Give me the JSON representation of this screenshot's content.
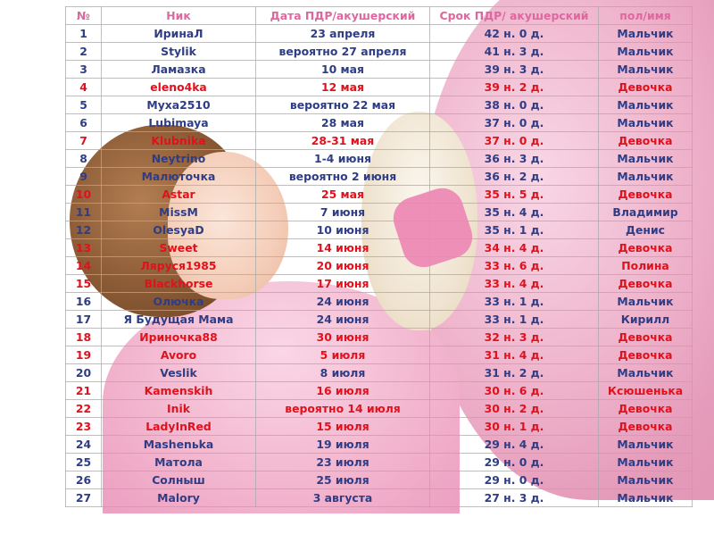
{
  "headers": [
    "№",
    "Ник",
    "Дата ПДР/акушерский",
    "Срок ПДР/ акушерский",
    "пол/имя"
  ],
  "rows": [
    {
      "num": "1",
      "nick": "ИринаЛ",
      "date": "23 апреля",
      "term": "42 н. 0 д.",
      "gender": "Мальчик",
      "girl": false
    },
    {
      "num": "2",
      "nick": "Stylik",
      "date": "вероятно 27 апреля",
      "term": "41 н. 3 д.",
      "gender": "Мальчик",
      "girl": false
    },
    {
      "num": "3",
      "nick": "Ламазка",
      "date": "10 мая",
      "term": "39 н. 3 д.",
      "gender": "Мальчик",
      "girl": false
    },
    {
      "num": "4",
      "nick": "eleno4ka",
      "date": "12 мая",
      "term": "39 н. 2 д.",
      "gender": "Девочка",
      "girl": true
    },
    {
      "num": "5",
      "nick": "Муха2510",
      "date": "вероятно 22 мая",
      "term": "38 н. 0 д.",
      "gender": "Мальчик",
      "girl": false
    },
    {
      "num": "6",
      "nick": "Lubimaya",
      "date": "28 мая",
      "term": "37 н. 0 д.",
      "gender": "Мальчик",
      "girl": false
    },
    {
      "num": "7",
      "nick": "Klubnika",
      "date": "28-31 мая",
      "term": "37 н. 0 д.",
      "gender": "Девочка",
      "girl": true
    },
    {
      "num": "8",
      "nick": "Neytrino",
      "date": "1-4 июня",
      "term": "36 н. 3 д.",
      "gender": "Мальчик",
      "girl": false
    },
    {
      "num": "9",
      "nick": "Малюточка",
      "date": "вероятно 2 июня",
      "term": "36 н. 2 д.",
      "gender": "Мальчик",
      "girl": false
    },
    {
      "num": "10",
      "nick": "Astar",
      "date": "25 мая",
      "term": "35 н. 5 д.",
      "gender": "Девочка",
      "girl": true
    },
    {
      "num": "11",
      "nick": "MissM",
      "date": "7 июня",
      "term": "35 н. 4 д.",
      "gender": "Владимир",
      "girl": false
    },
    {
      "num": "12",
      "nick": "OlesyaD",
      "date": "10 июня",
      "term": "35 н. 1 д.",
      "gender": "Денис",
      "girl": false
    },
    {
      "num": "13",
      "nick": "Sweet",
      "date": "14 июня",
      "term": "34 н. 4 д.",
      "gender": "Девочка",
      "girl": true
    },
    {
      "num": "14",
      "nick": "Ляруся1985",
      "date": "20 июня",
      "term": "33 н. 6 д.",
      "gender": "Полина",
      "girl": true
    },
    {
      "num": "15",
      "nick": "Blackhorse",
      "date": "17 июня",
      "term": "33 н. 4 д.",
      "gender": "Девочка",
      "girl": true
    },
    {
      "num": "16",
      "nick": "Олючка",
      "date": "24 июня",
      "term": "33 н. 1 д.",
      "gender": "Мальчик",
      "girl": false
    },
    {
      "num": "17",
      "nick": "Я Будущая Мама",
      "date": "24 июня",
      "term": "33 н. 1 д.",
      "gender": "Кирилл",
      "girl": false
    },
    {
      "num": "18",
      "nick": "Ириночка88",
      "date": "30 июня",
      "term": "32 н. 3 д.",
      "gender": "Девочка",
      "girl": true
    },
    {
      "num": "19",
      "nick": "Avoro",
      "date": "5 июля",
      "term": "31 н. 4 д.",
      "gender": "Девочка",
      "girl": true
    },
    {
      "num": "20",
      "nick": "Veslik",
      "date": "8 июля",
      "term": "31 н. 2 д.",
      "gender": "Мальчик",
      "girl": false
    },
    {
      "num": "21",
      "nick": "Kamenskih",
      "date": "16 июля",
      "term": "30 н. 6 д.",
      "gender": "Ксюшенька",
      "girl": true
    },
    {
      "num": "22",
      "nick": "Inik",
      "date": "вероятно 14 июля",
      "term": "30 н. 2 д.",
      "gender": "Девочка",
      "girl": true
    },
    {
      "num": "23",
      "nick": "LadyInRed",
      "date": "15 июля",
      "term": "30 н. 1 д.",
      "gender": "Девочка",
      "girl": true
    },
    {
      "num": "24",
      "nick": "Mashenьka",
      "date": "19 июля",
      "term": "29 н. 4 д.",
      "gender": "Мальчик",
      "girl": false
    },
    {
      "num": "25",
      "nick": "Матола",
      "date": "23 июля",
      "term": "29 н. 0 д.",
      "gender": "Мальчик",
      "girl": false
    },
    {
      "num": "26",
      "nick": "Солныш",
      "date": "25 июля",
      "term": "29 н. 0 д.",
      "gender": "Мальчик",
      "girl": false
    },
    {
      "num": "27",
      "nick": "Malory",
      "date": "3 августа",
      "term": "27 н. 3 д.",
      "gender": "Мальчик",
      "girl": false
    }
  ],
  "colors": {
    "boy_text": "#2e3d86",
    "girl_text": "#e1111c",
    "header_text": "#e066a0"
  }
}
